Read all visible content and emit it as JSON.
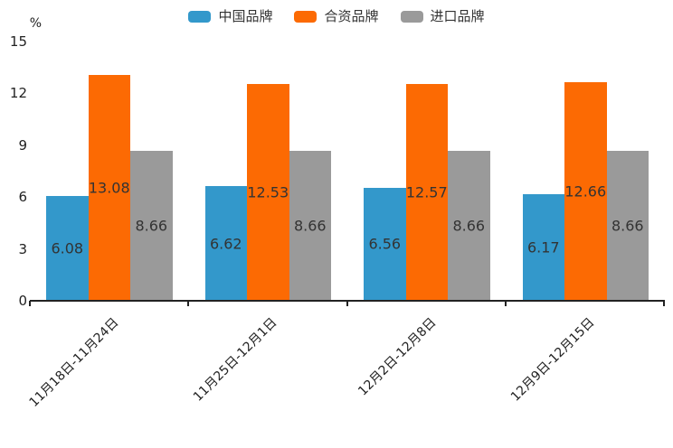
{
  "chart_data": {
    "type": "bar",
    "title": "",
    "ylabel": "%",
    "ylim": [
      0,
      15
    ],
    "yticks": [
      0,
      3,
      6,
      9,
      12,
      15
    ],
    "grid": false,
    "legend_position": "top-center",
    "value_labels": "inside-center",
    "axis_color": "#222222",
    "value_label_color": "#333333",
    "categories": [
      "11月18日-11月24日",
      "11月25日-12月1日",
      "12月2日-12月8日",
      "12月9日-12月15日"
    ],
    "series": [
      {
        "name": "中国品牌",
        "color": "#3398CB",
        "values": [
          6.08,
          6.62,
          6.56,
          6.17
        ]
      },
      {
        "name": "合资品牌",
        "color": "#FC6A03",
        "values": [
          13.08,
          12.53,
          12.57,
          12.66
        ]
      },
      {
        "name": "进口品牌",
        "color": "#9A9A9A",
        "values": [
          8.66,
          8.66,
          8.66,
          8.66
        ]
      }
    ]
  }
}
